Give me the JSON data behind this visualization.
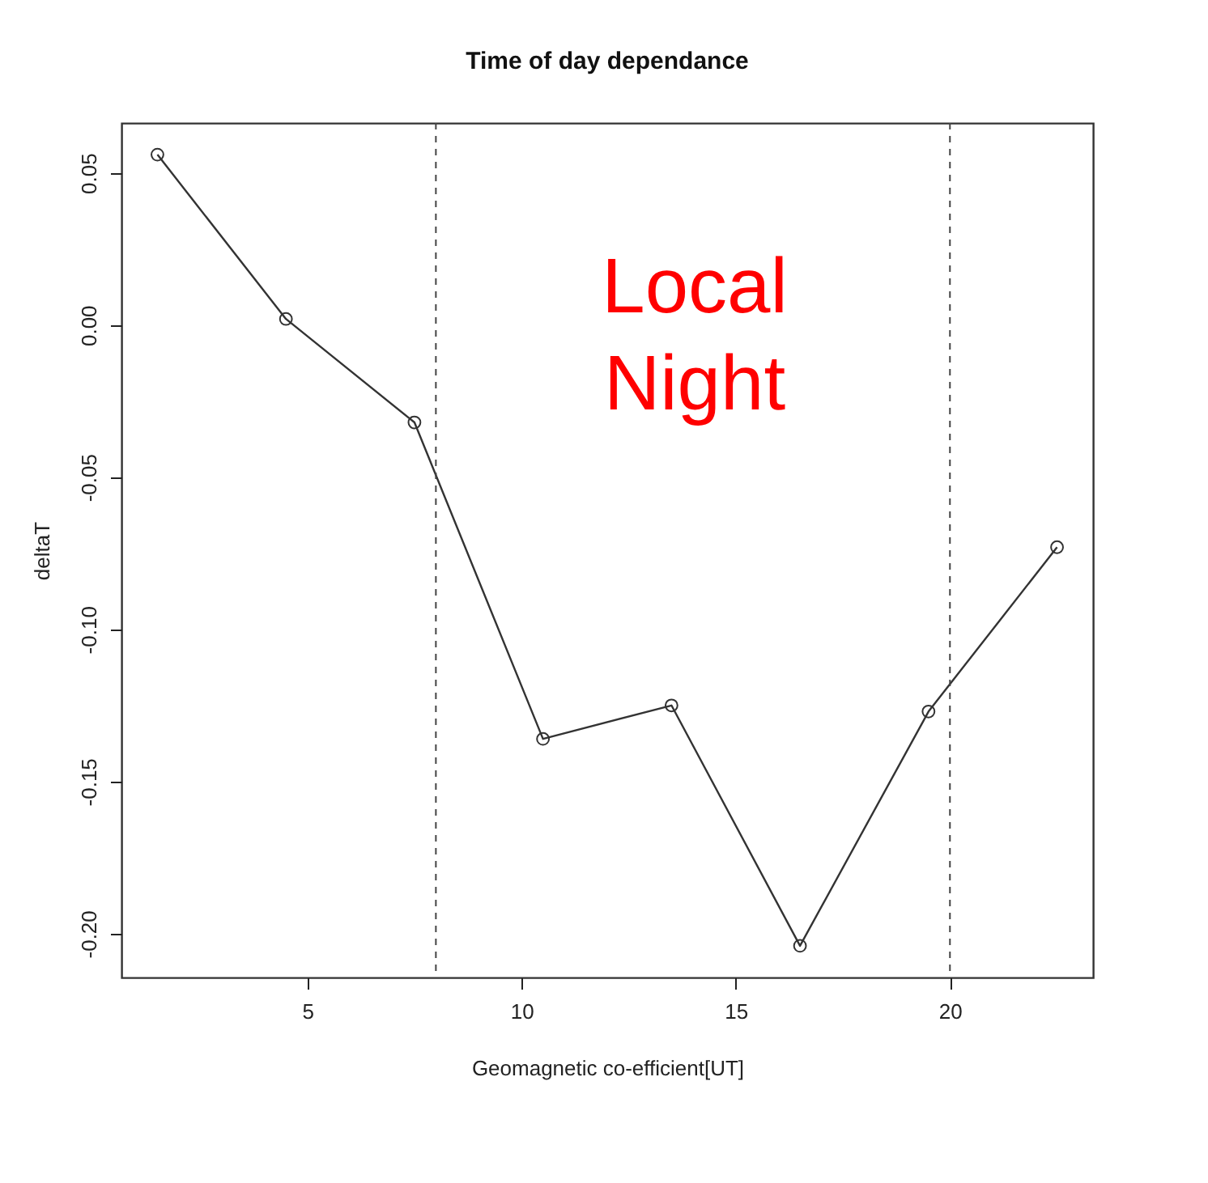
{
  "chart_data": {
    "type": "line",
    "title": "Time of day dependance",
    "xlabel": "Geomagnetic co-efficient[UT]",
    "ylabel": "deltaT",
    "x": [
      1.5,
      4.5,
      7.5,
      10.5,
      13.5,
      16.5,
      19.5,
      22.5
    ],
    "series": [
      {
        "color": "#333333",
        "values": [
          0.056,
          0.002,
          -0.032,
          -0.136,
          -0.125,
          -0.204,
          -0.127,
          -0.073
        ]
      }
    ],
    "xlim": [
      0.66,
      23.34
    ],
    "ylim": [
      -0.2144,
      0.0664
    ],
    "xticks": [
      5,
      10,
      15,
      20
    ],
    "yticks": [
      {
        "value": 0.05,
        "label": "0.05"
      },
      {
        "value": 0.0,
        "label": "0.00"
      },
      {
        "value": -0.05,
        "label": "-0.05"
      },
      {
        "value": -0.1,
        "label": "-0.10"
      },
      {
        "value": -0.15,
        "label": "-0.15"
      },
      {
        "value": -0.2,
        "label": "-0.20"
      }
    ],
    "ref_lines": [
      {
        "axis": "x",
        "value": 8,
        "color": "#444444",
        "line_style": "dashed"
      },
      {
        "axis": "x",
        "value": 20,
        "color": "#444444",
        "line_style": "dashed"
      }
    ],
    "annotations": [
      "Local\nNight"
    ],
    "marker": "circle",
    "line_style": "solid",
    "grid": false
  }
}
